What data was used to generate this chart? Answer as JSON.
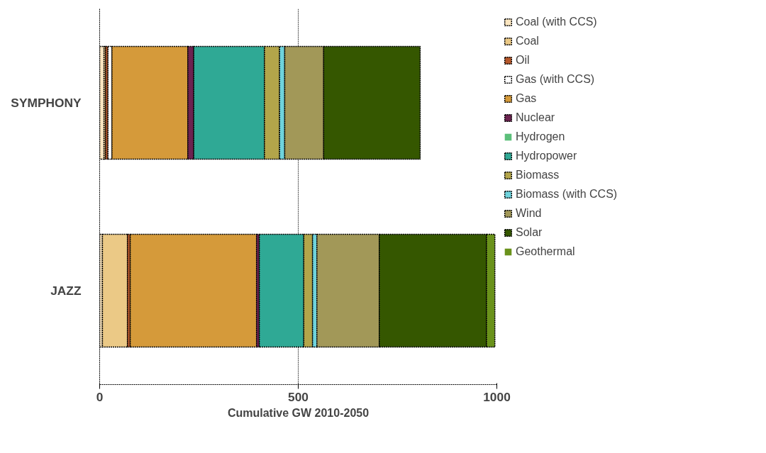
{
  "chart_data": {
    "type": "bar",
    "orientation": "horizontal",
    "stacked": true,
    "xlabel": "Cumulative GW 2010-2050",
    "categories": [
      "SYMPHONY",
      "JAZZ"
    ],
    "series": [
      {
        "name": "Coal (with CCS)",
        "color": "#fbe6c0",
        "values": [
          11,
          7
        ]
      },
      {
        "name": "Coal",
        "color": "#ebc986",
        "values": [
          4,
          63
        ]
      },
      {
        "name": "Oil",
        "color": "#b5572a",
        "values": [
          6,
          7
        ]
      },
      {
        "name": "Gas (with CCS)",
        "color": "#ffffff",
        "values": [
          10,
          0
        ]
      },
      {
        "name": "Gas",
        "color": "#d59a3a",
        "values": [
          191,
          318
        ]
      },
      {
        "name": "Nuclear",
        "color": "#6c2350",
        "values": [
          15,
          7
        ]
      },
      {
        "name": "Hydrogen",
        "color": "#5cbf7a",
        "values": [
          0,
          0
        ]
      },
      {
        "name": "Hydropower",
        "color": "#2fa995",
        "values": [
          178,
          112
        ]
      },
      {
        "name": "Biomass",
        "color": "#b3a54a",
        "values": [
          38,
          22
        ]
      },
      {
        "name": "Biomass (with CCS)",
        "color": "#6fd3dc",
        "values": [
          13,
          11
        ]
      },
      {
        "name": "Wind",
        "color": "#a29858",
        "values": [
          98,
          157
        ]
      },
      {
        "name": "Solar",
        "color": "#355700",
        "values": [
          243,
          270
        ]
      },
      {
        "name": "Geothermal",
        "color": "#6a921b",
        "values": [
          0,
          21
        ]
      }
    ],
    "xlim": [
      0,
      1000
    ],
    "xticks": [
      0,
      500,
      1000
    ],
    "grid": "x",
    "legend": "right"
  }
}
